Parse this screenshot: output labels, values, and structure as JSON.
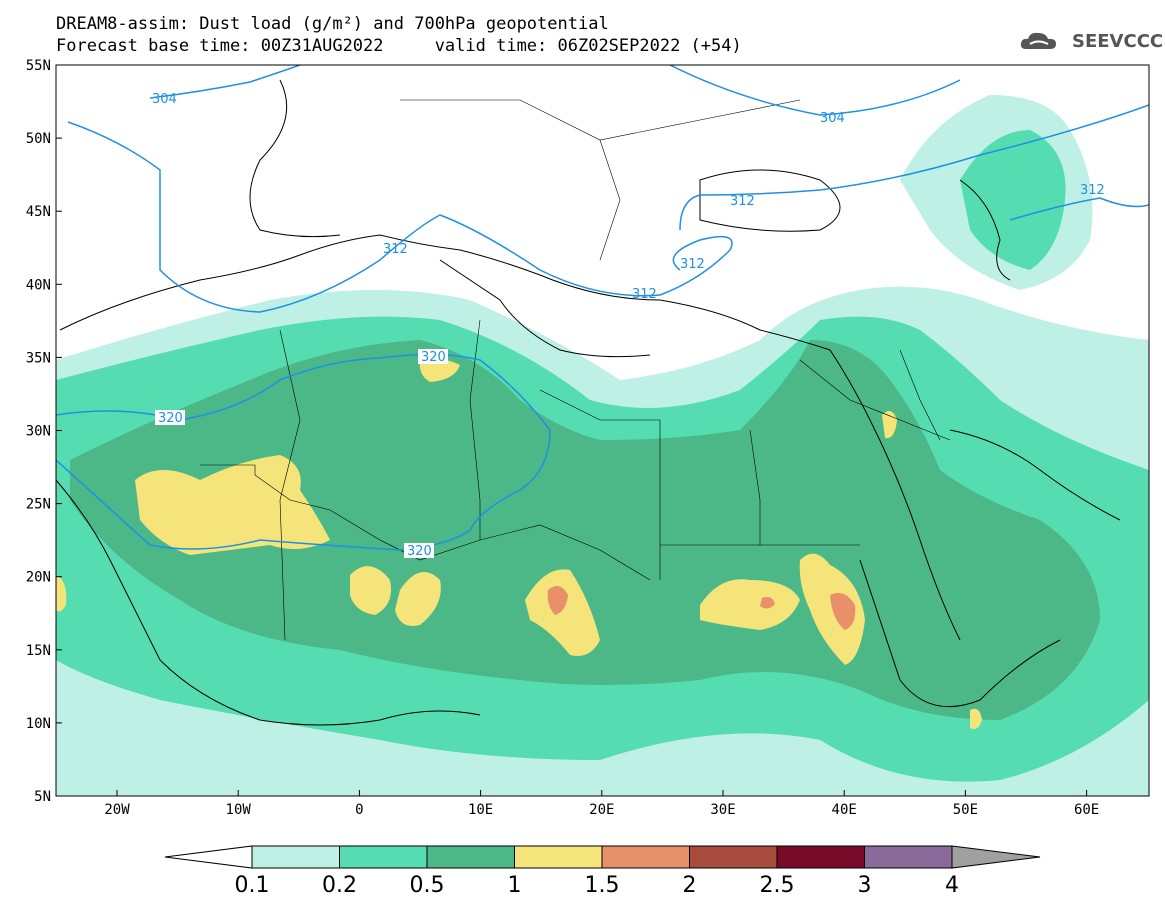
{
  "header": {
    "title_line1": "DREAM8-assim: Dust load (g/m²) and 700hPa geopotential",
    "title_line2": "Forecast base time: 00Z31AUG2022     valid time: 06Z02SEP2022 (+54)"
  },
  "logo": {
    "text": "SEEVCCC",
    "icon": "cloud-icon"
  },
  "map": {
    "lat_labels": [
      "55N",
      "50N",
      "45N",
      "40N",
      "35N",
      "30N",
      "25N",
      "20N",
      "15N",
      "10N",
      "5N"
    ],
    "lon_labels": [
      "20W",
      "10W",
      "0",
      "10E",
      "20E",
      "30E",
      "40E",
      "50E",
      "60E"
    ],
    "geopotential_contours": [
      "304",
      "304",
      "312",
      "312",
      "312",
      "312",
      "312",
      "320",
      "320",
      "320"
    ]
  },
  "colorbar": {
    "labels": [
      "0.1",
      "0.2",
      "0.5",
      "1",
      "1.5",
      "2",
      "2.5",
      "3",
      "4"
    ],
    "colors": [
      "#bff0e6",
      "#55dcb0",
      "#4cb888",
      "#f5e47a",
      "#e8906a",
      "#a84a3c",
      "#7a0a2a",
      "#8a6a9a",
      "#a0a0a0"
    ]
  }
}
